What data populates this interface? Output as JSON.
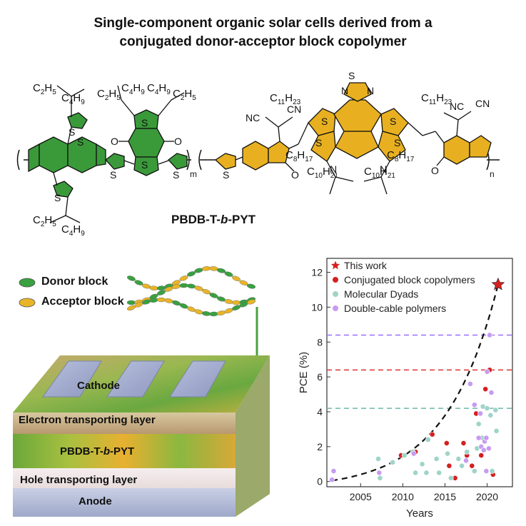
{
  "title": {
    "line1": "Single-component organic solar cells derived from a",
    "line2": "conjugated donor-acceptor block copolymer"
  },
  "structure": {
    "polymer_name_part1": "PBDB-T-",
    "polymer_name_italic": "b",
    "polymer_name_part2": "-PYT",
    "subscript_m": "m",
    "subscript_n": "n",
    "atoms": {
      "S": "S",
      "O": "O",
      "N": "N",
      "NC": "NC",
      "CN": "CN"
    },
    "side_chains": {
      "c2h5": "C2H5",
      "c4h9": "C4H9",
      "c11h23": "C11H23",
      "c8h17": "C8H17",
      "c10h21": "C10H21"
    },
    "colors": {
      "donor": "#3a9a3a",
      "acceptor": "#e8b020"
    }
  },
  "legend": {
    "donor_label": "Donor  block",
    "acceptor_label": "Acceptor block",
    "donor_color": "#3aa040",
    "acceptor_color": "#e8b428"
  },
  "device": {
    "layers": [
      {
        "label": "Cathode"
      },
      {
        "label": "Electron transporting layer"
      },
      {
        "label_part1": "PBDB-T-",
        "label_italic": "b",
        "label_part2": "-PYT"
      },
      {
        "label": "Hole transporting layer"
      },
      {
        "label": "Anode"
      }
    ]
  },
  "chart_data": {
    "type": "scatter",
    "xlabel": "Years",
    "ylabel": "PCE (%)",
    "xlim": [
      2001,
      2023
    ],
    "ylim": [
      -0.3,
      12.8
    ],
    "xticks": [
      2005,
      2010,
      2015,
      2020
    ],
    "yticks": [
      0,
      2,
      4,
      6,
      8,
      10,
      12
    ],
    "legend_position": "top-left",
    "series": [
      {
        "name": "This work",
        "marker": "star",
        "color": "#d42020",
        "points": [
          [
            2021.3,
            11.3
          ]
        ]
      },
      {
        "name": "Conjugated block copolymers",
        "marker": "circle",
        "color": "#d42020",
        "points": [
          [
            2009.8,
            1.5
          ],
          [
            2011.5,
            1.7
          ],
          [
            2013.5,
            2.7
          ],
          [
            2015.2,
            2.2
          ],
          [
            2015.5,
            0.9
          ],
          [
            2016.2,
            0.2
          ],
          [
            2017.2,
            2.2
          ],
          [
            2017.6,
            1.5
          ],
          [
            2018.2,
            0.9
          ],
          [
            2018.7,
            3.9
          ],
          [
            2019.3,
            1.5
          ],
          [
            2019.8,
            5.3
          ],
          [
            2020.3,
            6.4
          ],
          [
            2020.7,
            0.4
          ]
        ]
      },
      {
        "name": "Molecular Dyads",
        "marker": "circle",
        "color": "#9fd4c8",
        "points": [
          [
            2007.1,
            1.3
          ],
          [
            2007.3,
            0.2
          ],
          [
            2008.8,
            1.1
          ],
          [
            2010.2,
            1.5
          ],
          [
            2011.2,
            1.7
          ],
          [
            2011.5,
            0.5
          ],
          [
            2012.3,
            1.0
          ],
          [
            2012.8,
            0.5
          ],
          [
            2013.0,
            2.4
          ],
          [
            2014.0,
            1.3
          ],
          [
            2014.3,
            0.5
          ],
          [
            2015.3,
            1.6
          ],
          [
            2015.7,
            0.2
          ],
          [
            2016.6,
            1.3
          ],
          [
            2017.0,
            0.9
          ],
          [
            2017.6,
            1.7
          ],
          [
            2018.5,
            0.6
          ],
          [
            2018.8,
            1.9
          ],
          [
            2019.0,
            3.3
          ],
          [
            2019.4,
            2.5
          ],
          [
            2019.5,
            4.3
          ],
          [
            2020.0,
            4.2
          ],
          [
            2020.4,
            3.8
          ],
          [
            2020.6,
            0.6
          ],
          [
            2021.0,
            4.1
          ],
          [
            2021.1,
            2.9
          ]
        ]
      },
      {
        "name": "Double-cable polymers",
        "marker": "circle",
        "color": "#c79cf0",
        "points": [
          [
            2001.6,
            0.1
          ],
          [
            2001.8,
            0.6
          ],
          [
            2007.2,
            0.5
          ],
          [
            2011.3,
            1.6
          ],
          [
            2017.5,
            1.2
          ],
          [
            2018.0,
            5.6
          ],
          [
            2018.5,
            4.4
          ],
          [
            2019.0,
            2.5
          ],
          [
            2019.2,
            3.9
          ],
          [
            2019.3,
            2.0
          ],
          [
            2019.6,
            1.8
          ],
          [
            2019.7,
            2.3
          ],
          [
            2019.9,
            2.5
          ],
          [
            2020.0,
            6.3
          ],
          [
            2020.3,
            8.4
          ],
          [
            2020.5,
            5.1
          ],
          [
            2019.9,
            0.6
          ],
          [
            2020.2,
            1.9
          ]
        ]
      }
    ],
    "reference_lines": [
      {
        "y": 8.4,
        "color": "#9b6cff"
      },
      {
        "y": 6.4,
        "color": "#e03030"
      },
      {
        "y": 4.2,
        "color": "#6cb8a8"
      }
    ],
    "trend_curve": true
  }
}
